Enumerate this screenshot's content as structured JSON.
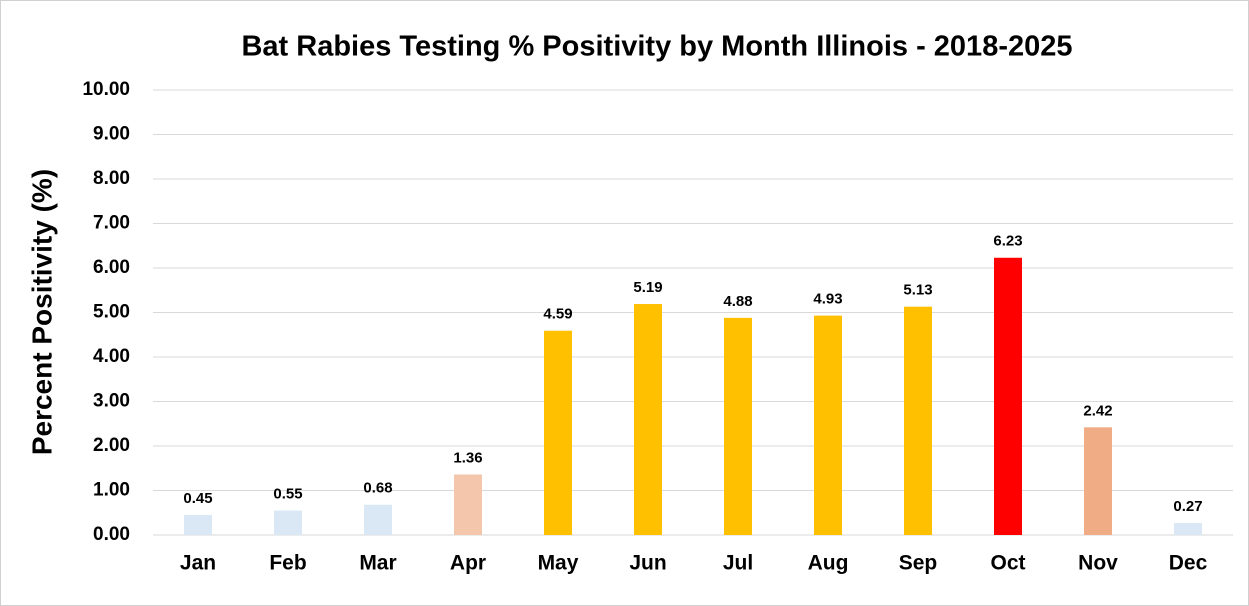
{
  "chart_data": {
    "type": "bar",
    "title": "Bat Rabies Testing % Positivity by Month Illinois - 2018-2025",
    "y_label": "Percent Positivity (%)",
    "categories": [
      "Jan",
      "Feb",
      "Mar",
      "Apr",
      "May",
      "Jun",
      "Jul",
      "Aug",
      "Sep",
      "Oct",
      "Nov",
      "Dec"
    ],
    "values": [
      0.45,
      0.55,
      0.68,
      1.36,
      4.59,
      5.19,
      4.88,
      4.93,
      5.13,
      6.23,
      2.42,
      0.27
    ],
    "colors": [
      "#dae8f6",
      "#dae8f6",
      "#dae8f6",
      "#f4c7ac",
      "#ffc000",
      "#ffc000",
      "#ffc000",
      "#ffc000",
      "#ffc000",
      "#ff0000",
      "#f0ad85",
      "#dae8f6"
    ],
    "ylim": [
      0,
      10
    ],
    "yticks": [
      {
        "value": 0,
        "label": "0.00"
      },
      {
        "value": 1,
        "label": "1.00"
      },
      {
        "value": 2,
        "label": "2.00"
      },
      {
        "value": 3,
        "label": "3.00"
      },
      {
        "value": 4,
        "label": "4.00"
      },
      {
        "value": 5,
        "label": "5.00"
      },
      {
        "value": 6,
        "label": "6.00"
      },
      {
        "value": 7,
        "label": "7.00"
      },
      {
        "value": 8,
        "label": "8.00"
      },
      {
        "value": 9,
        "label": "9.00"
      },
      {
        "value": 10,
        "label": "10.00"
      }
    ],
    "grid": true
  }
}
